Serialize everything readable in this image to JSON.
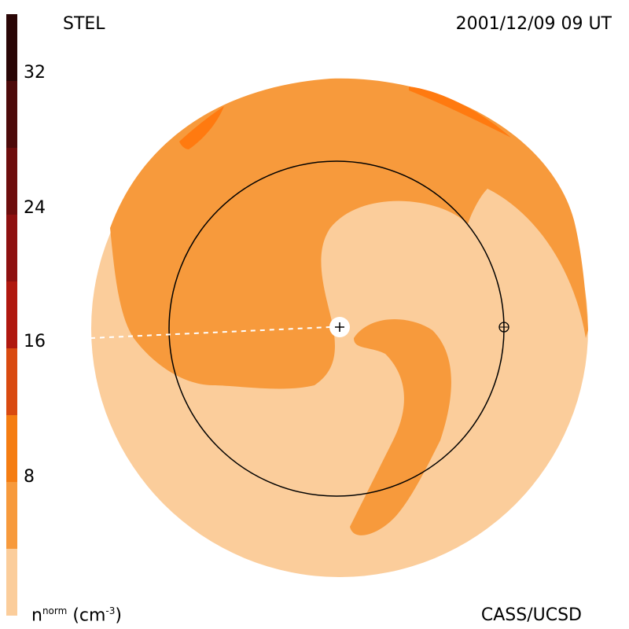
{
  "header": {
    "title": "STEL",
    "timestamp": "2001/12/09 09 UT",
    "credit": "CASS/UCSD"
  },
  "colorbar": {
    "ticks": [
      "32",
      "24",
      "16",
      "8"
    ],
    "unit_base": "n",
    "unit_sup": "norm",
    "unit_paren": "(cm",
    "unit_exp": "-3",
    "unit_close": ")",
    "colors": [
      "#2a0606",
      "#4d0a0a",
      "#6e0d0d",
      "#8e1010",
      "#b0180f",
      "#d94a10",
      "#f57d12",
      "#f79a3c",
      "#fbcd9b"
    ]
  },
  "palette": {
    "outer_low": "#fbcd9b",
    "mid": "#f79a3c",
    "high": "#ff7a10",
    "circle": "#000000"
  },
  "markers": {
    "sun": "+",
    "earth": "⊕"
  }
}
